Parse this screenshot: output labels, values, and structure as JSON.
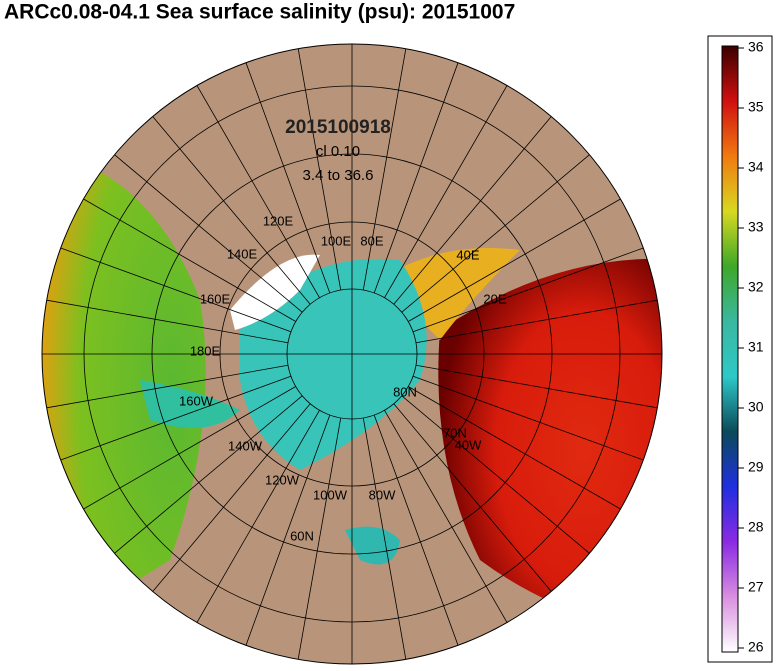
{
  "title": "ARCc0.08-04.1 Sea surface salinity (psu): 20151007",
  "map": {
    "date_label": "2015100918",
    "contour_interval": "cl 0.10",
    "range_label": "3.4 to 36.6",
    "graticule_labels": [
      "120E",
      "140E",
      "100E",
      "80E",
      "40E",
      "160E",
      "20E",
      "180E",
      "160W",
      "80N",
      "70N",
      "140W",
      "40W",
      "120W",
      "100W",
      "80W",
      "60N"
    ]
  },
  "colorbar": {
    "range": [
      26,
      36
    ],
    "ticks": [
      26,
      27,
      28,
      29,
      30,
      31,
      32,
      33,
      34,
      35,
      36
    ],
    "colors": [
      "#ffffff",
      "#d98ee0",
      "#8a2be2",
      "#1f2fe0",
      "#0b4a5a",
      "#2ec8c8",
      "#3ab8a0",
      "#3ea829",
      "#d8d820",
      "#f07a10",
      "#d01010",
      "#3a0000"
    ]
  }
}
